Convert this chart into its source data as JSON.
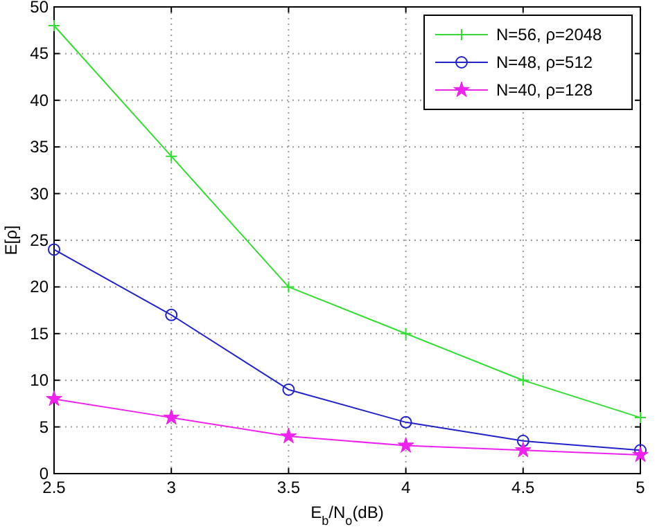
{
  "chart_data": {
    "type": "line",
    "xlabel": "E$_{b}$/N$_{o}$(dB)",
    "ylabel": "E[ρ]",
    "x": [
      2.5,
      3,
      3.5,
      4,
      4.5,
      5
    ],
    "series": [
      {
        "name": "N=56, ρ=2048",
        "color": "#33dd33",
        "marker": "cross",
        "values": [
          48,
          34,
          20,
          15,
          10,
          6
        ]
      },
      {
        "name": "N=48, ρ=512",
        "color": "#2222cc",
        "marker": "circle",
        "values": [
          24,
          17,
          9,
          5.5,
          3.5,
          2.5
        ]
      },
      {
        "name": "N=40, ρ=128",
        "color": "#ee22ee",
        "marker": "star",
        "values": [
          8,
          6,
          4,
          3,
          2.5,
          2
        ]
      }
    ],
    "xlim": [
      2.5,
      5
    ],
    "xticks": [
      2.5,
      3,
      3.5,
      4,
      4.5,
      5
    ],
    "ylim": [
      0,
      50
    ],
    "yticks": [
      0,
      5,
      10,
      15,
      20,
      25,
      30,
      35,
      40,
      45,
      50
    ],
    "grid": true,
    "legend": "top right",
    "line_style": "solid"
  }
}
